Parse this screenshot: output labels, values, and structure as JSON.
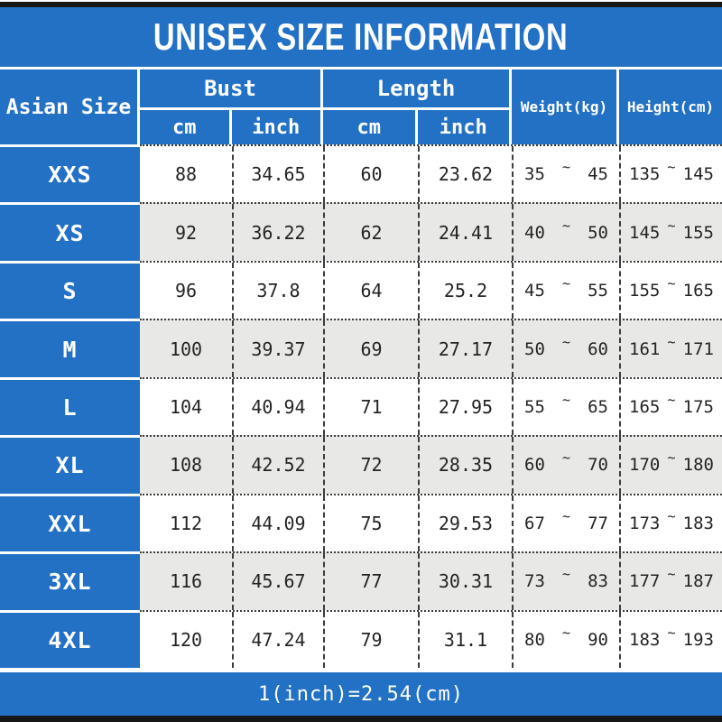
{
  "title": "UNISEX SIZE INFORMATION",
  "footnote": "1(inch)=2.54(cm)",
  "ui": {
    "tilde": "~"
  },
  "header": {
    "size_col": "Asian Size",
    "bust": "Bust",
    "length": "Length",
    "cm": "cm",
    "inch": "inch",
    "weight": "Weight(kg)",
    "height": "Height(cm)"
  },
  "colors": {
    "blue": "#2371c4",
    "alt_row": "#e8e8e6",
    "bar": "#171717",
    "text": "#242424",
    "header_text": "#ffffff"
  },
  "chart_data": {
    "type": "table",
    "title": "UNISEX SIZE INFORMATION",
    "columns": [
      "Asian Size",
      "Bust (cm)",
      "Bust (inch)",
      "Length (cm)",
      "Length (inch)",
      "Weight min (kg)",
      "Weight max (kg)",
      "Height min (cm)",
      "Height max (cm)"
    ],
    "rows": [
      [
        "XXS",
        "88",
        "34.65",
        "60",
        "23.62",
        "35",
        "45",
        "135",
        "145"
      ],
      [
        "XS",
        "92",
        "36.22",
        "62",
        "24.41",
        "40",
        "50",
        "145",
        "155"
      ],
      [
        "S",
        "96",
        "37.8",
        "64",
        "25.2",
        "45",
        "55",
        "155",
        "165"
      ],
      [
        "M",
        "100",
        "39.37",
        "69",
        "27.17",
        "50",
        "60",
        "161",
        "171"
      ],
      [
        "L",
        "104",
        "40.94",
        "71",
        "27.95",
        "55",
        "65",
        "165",
        "175"
      ],
      [
        "XL",
        "108",
        "42.52",
        "72",
        "28.35",
        "60",
        "70",
        "170",
        "180"
      ],
      [
        "XXL",
        "112",
        "44.09",
        "75",
        "29.53",
        "67",
        "77",
        "173",
        "183"
      ],
      [
        "3XL",
        "116",
        "45.67",
        "77",
        "30.31",
        "73",
        "83",
        "177",
        "187"
      ],
      [
        "4XL",
        "120",
        "47.24",
        "79",
        "31.1",
        "80",
        "90",
        "183",
        "193"
      ]
    ],
    "footnote": "1(inch)=2.54(cm)"
  }
}
